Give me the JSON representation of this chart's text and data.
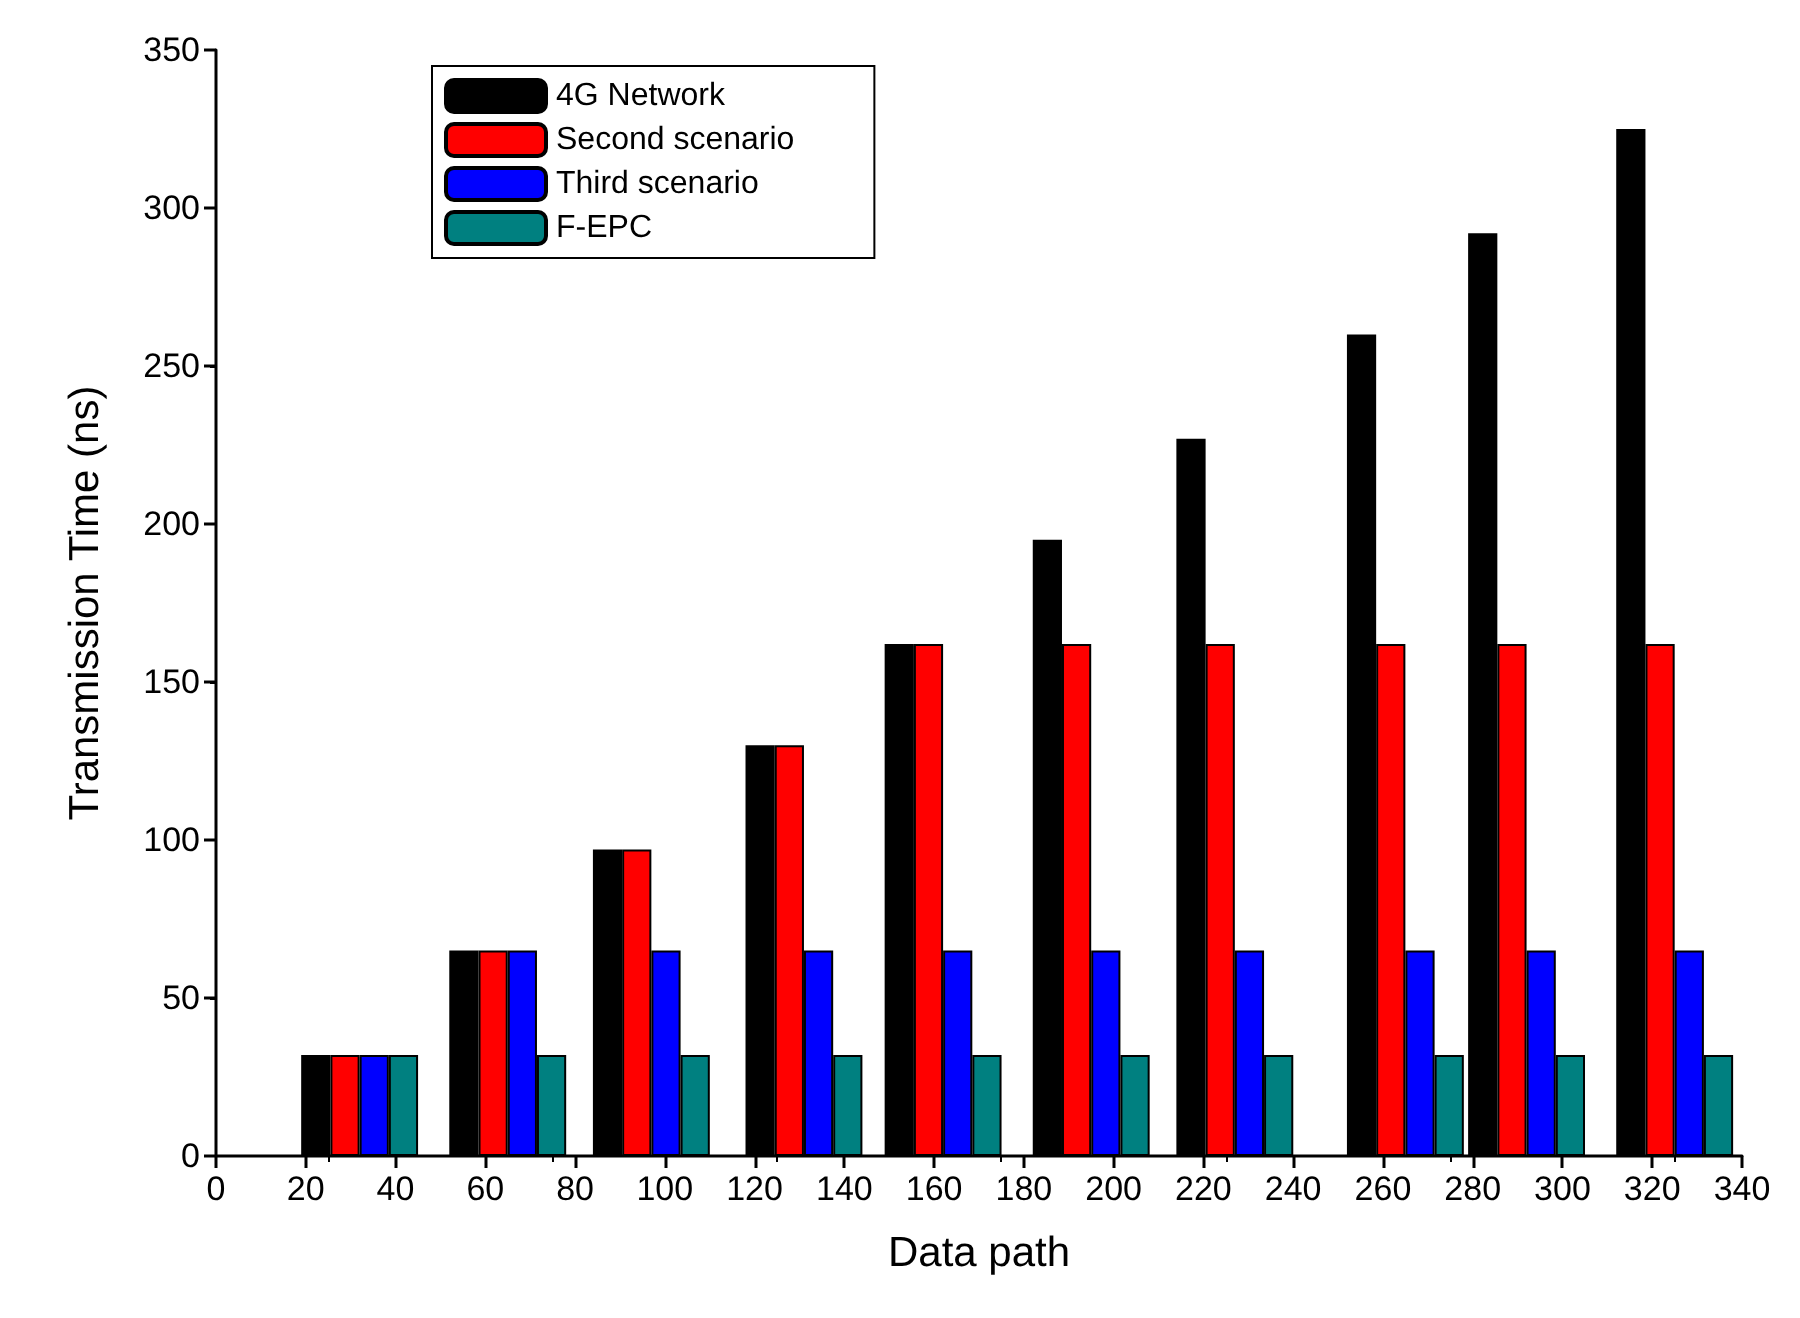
{
  "chart_data": {
    "type": "bar",
    "xlabel": "Data path",
    "ylabel": "Transmission Time (ns)",
    "x": [
      32,
      65,
      97,
      131,
      162,
      195,
      227,
      265,
      292,
      325
    ],
    "series": [
      {
        "name": "4G Network",
        "color": "#000000",
        "values": [
          32,
          65,
          97,
          130,
          162,
          195,
          227,
          260,
          292,
          325
        ]
      },
      {
        "name": "Second scenario",
        "color": "#ff0000",
        "values": [
          32,
          65,
          97,
          130,
          162,
          162,
          162,
          162,
          162,
          162
        ]
      },
      {
        "name": "Third scenario",
        "color": "#0000ff",
        "values": [
          32,
          65,
          65,
          65,
          65,
          65,
          65,
          65,
          65,
          65
        ]
      },
      {
        "name": "F-EPC",
        "color": "#008080",
        "values": [
          32,
          32,
          32,
          32,
          32,
          32,
          32,
          32,
          32,
          32
        ]
      }
    ],
    "xlim": [
      0,
      340
    ],
    "xticks": [
      0,
      20,
      40,
      60,
      80,
      100,
      120,
      140,
      160,
      180,
      200,
      220,
      240,
      260,
      280,
      300,
      320,
      340
    ],
    "ylim": [
      0,
      350
    ],
    "yticks": [
      0,
      50,
      100,
      150,
      200,
      250,
      300,
      350
    ],
    "grid": false,
    "legend": "top left"
  }
}
